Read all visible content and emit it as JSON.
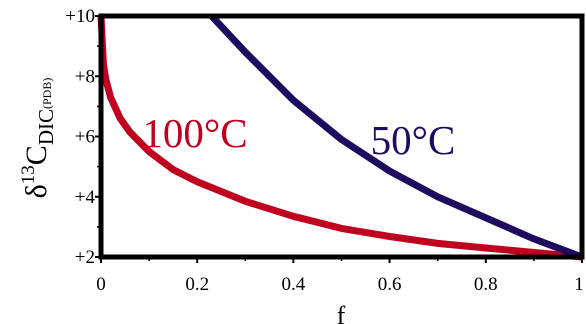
{
  "chart_data": {
    "type": "line",
    "xlabel": "f",
    "ylabel": {
      "prefix": "δ",
      "superscript": "13",
      "main": "C",
      "subscript": "DIC",
      "sub_subscript": "(PDB)"
    },
    "xlim": [
      0,
      1
    ],
    "ylim": [
      2,
      10
    ],
    "x_ticks": [
      "0",
      "0.2",
      "0.4",
      "0.6",
      "0.8",
      "1"
    ],
    "y_ticks": [
      "+2",
      "+4",
      "+6",
      "+8",
      "+10"
    ],
    "grid": false,
    "colors": {
      "series_100C": "#c0001f",
      "series_50C": "#1e0a5e",
      "frame": "#000000"
    },
    "series": [
      {
        "name": "100°C",
        "x": [
          0.0,
          0.005,
          0.01,
          0.02,
          0.04,
          0.06,
          0.1,
          0.15,
          0.2,
          0.3,
          0.4,
          0.5,
          0.6,
          0.7,
          0.8,
          0.9,
          1.0
        ],
        "y": [
          10.0,
          8.4,
          7.9,
          7.3,
          6.6,
          6.15,
          5.5,
          4.9,
          4.5,
          3.85,
          3.35,
          2.95,
          2.68,
          2.45,
          2.3,
          2.15,
          2.0
        ]
      },
      {
        "name": "50°C",
        "x": [
          0.23,
          0.3,
          0.4,
          0.5,
          0.6,
          0.7,
          0.8,
          0.9,
          1.0
        ],
        "y": [
          10.0,
          8.8,
          7.2,
          5.9,
          4.85,
          4.0,
          3.3,
          2.6,
          2.0
        ]
      }
    ]
  }
}
